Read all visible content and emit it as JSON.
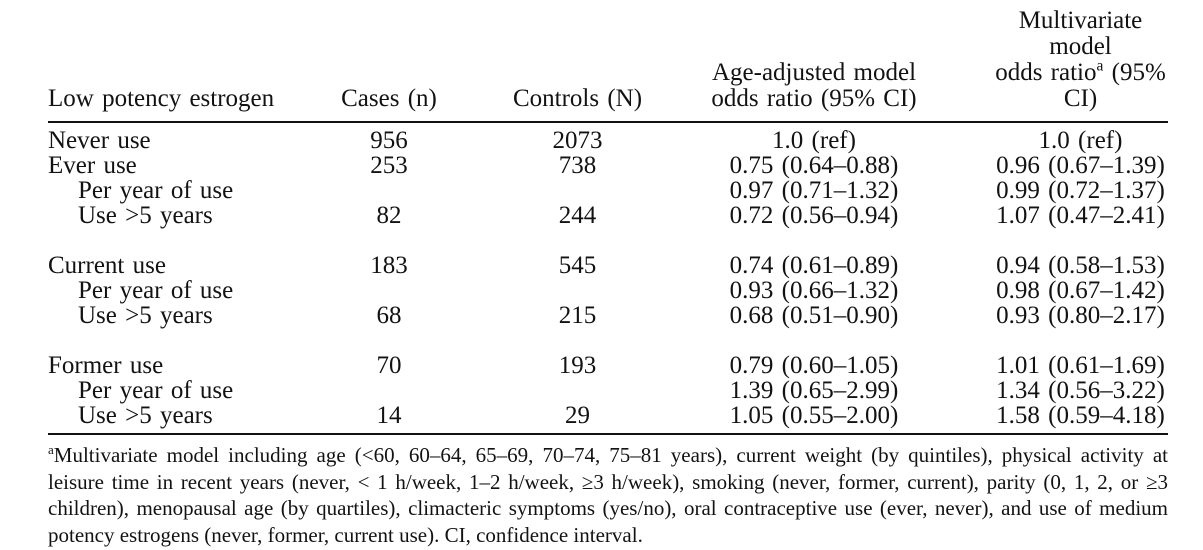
{
  "table": {
    "col1_header": "Low potency estrogen",
    "col2_header": "Cases (n)",
    "col3_header": "Controls (N)",
    "col4_header_line1": "Age-adjusted model",
    "col4_header_line2": "odds ratio (95% CI)",
    "col5_header_line1": "Multivariate model",
    "col5_header_line2_pre": "odds ratio",
    "col5_header_sup": "a",
    "col5_header_line2_post": " (95%",
    "col5_header_line3": "CI)",
    "rows": [
      {
        "label": "Never use",
        "indent": false,
        "cases": "956",
        "controls": "2073",
        "age_adjusted": "1.0 (ref)",
        "multivariate": "1.0 (ref)"
      },
      {
        "label": "Ever use",
        "indent": false,
        "cases": "253",
        "controls": "738",
        "age_adjusted": "0.75 (0.64–0.88)",
        "multivariate": "0.96 (0.67–1.39)"
      },
      {
        "label": "Per year of use",
        "indent": true,
        "cases": "",
        "controls": "",
        "age_adjusted": "0.97 (0.71–1.32)",
        "multivariate": "0.99 (0.72–1.37)"
      },
      {
        "label": "Use >5 years",
        "indent": true,
        "cases": "82",
        "controls": "244",
        "age_adjusted": "0.72 (0.56–0.94)",
        "multivariate": "1.07 (0.47–2.41)"
      },
      {
        "spacer": true
      },
      {
        "label": "Current use",
        "indent": false,
        "cases": "183",
        "controls": "545",
        "age_adjusted": "0.74 (0.61–0.89)",
        "multivariate": "0.94 (0.58–1.53)"
      },
      {
        "label": "Per year of use",
        "indent": true,
        "cases": "",
        "controls": "",
        "age_adjusted": "0.93 (0.66–1.32)",
        "multivariate": "0.98 (0.67–1.42)"
      },
      {
        "label": "Use >5 years",
        "indent": true,
        "cases": "68",
        "controls": "215",
        "age_adjusted": "0.68 (0.51–0.90)",
        "multivariate": "0.93 (0.80–2.17)"
      },
      {
        "spacer": true
      },
      {
        "label": "Former use",
        "indent": false,
        "cases": "70",
        "controls": "193",
        "age_adjusted": "0.79 (0.60–1.05)",
        "multivariate": "1.01 (0.61–1.69)"
      },
      {
        "label": "Per year of use",
        "indent": true,
        "cases": "",
        "controls": "",
        "age_adjusted": "1.39 (0.65–2.99)",
        "multivariate": "1.34 (0.56–3.22)"
      },
      {
        "label": "Use >5 years",
        "indent": true,
        "cases": "14",
        "controls": "29",
        "age_adjusted": "1.05 (0.55–2.00)",
        "multivariate": "1.58 (0.59–4.18)"
      }
    ]
  },
  "footnote": {
    "sup": "a",
    "text": "Multivariate model including age (<60, 60–64, 65–69, 70–74, 75–81 years), current weight (by quintiles), physical activity at leisure time in recent years (never, < 1 h/week, 1–2 h/week, ≥3 h/week), smoking (never, former, current), parity (0, 1, 2, or ≥3 children), menopausal age (by quartiles), climacteric symptoms (yes/no), oral contraceptive use (ever, never), and use of medium potency estrogens (never, former, current use). CI, confidence interval."
  }
}
